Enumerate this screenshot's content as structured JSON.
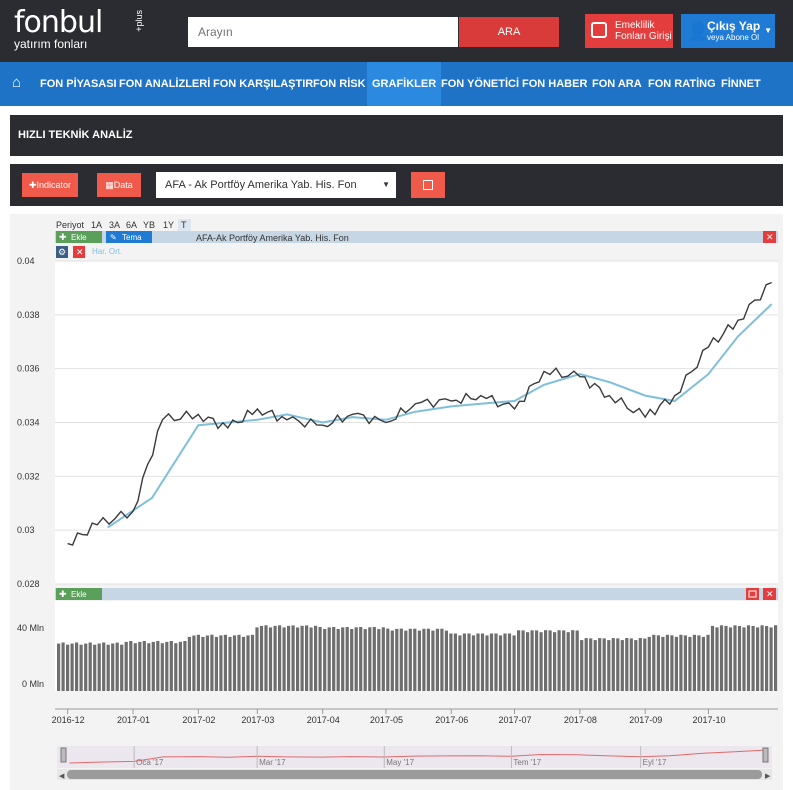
{
  "header": {
    "logo_main": "fonbul",
    "logo_plus": "+plus",
    "logo_sub": "yatırım fonları",
    "search_placeholder": "Arayın",
    "search_button": "ARA",
    "pension_button": "Emeklilik Fonları Girişi",
    "logout_title": "Çıkış Yap",
    "logout_sub": "veya Abone Ol"
  },
  "nav": {
    "items": [
      "FON PİYASASI",
      "FON ANALİZLERİ",
      "FON KARŞILAŞTIR",
      "FON RİSK",
      "GRAFİKLER",
      "FON YÖNETİCİ",
      "FON HABER",
      "FON ARA",
      "FON RATİNG",
      "FİNNET"
    ],
    "active": "GRAFİKLER"
  },
  "section": {
    "title": "HIZLI TEKNİK ANALİZ",
    "indicator_button": "Indicator",
    "data_button": "Data",
    "fund_selected": "AFA - Ak Portföy Amerika Yab. His. Fon"
  },
  "chart": {
    "period_label": "Periyot",
    "periods": [
      "1A",
      "3A",
      "6A",
      "YB",
      "1Y",
      "T"
    ],
    "active_period": "T",
    "add_label": "Ekle",
    "theme_label": "Tema",
    "series_title": "AFA-Ak Portföy Amerika Yab. His. Fon",
    "ma_label": "Har. Ort.",
    "volume_add_label": "Ekle",
    "price_ticks": [
      "0.04",
      "0.038",
      "0.036",
      "0.034",
      "0.032",
      "0.03",
      "0.028"
    ],
    "volume_ticks": [
      "40 Mln",
      "0 Mln"
    ],
    "x_ticks": [
      "2016-12",
      "2017-01",
      "2017-02",
      "2017-03",
      "2017-04",
      "2017-05",
      "2017-06",
      "2017-07",
      "2017-08",
      "2017-09",
      "2017-10"
    ],
    "navigator_labels": [
      "Oca '17",
      "Mar '17",
      "May '17",
      "Tem '17",
      "Eyl '17"
    ]
  },
  "chart_data": {
    "type": "line",
    "title": "AFA-Ak Portföy Amerika Yab. His. Fon",
    "ylim": [
      0.028,
      0.04
    ],
    "series": [
      {
        "name": "AFA-Ak Portföy Amerika Yab. His. Fon",
        "x": [
          "2016-12-01",
          "2016-12-15",
          "2017-01-01",
          "2017-01-15",
          "2017-02-01",
          "2017-02-15",
          "2017-03-01",
          "2017-03-15",
          "2017-04-01",
          "2017-04-15",
          "2017-05-01",
          "2017-05-15",
          "2017-06-01",
          "2017-06-15",
          "2017-07-01",
          "2017-07-15",
          "2017-08-01",
          "2017-08-15",
          "2017-09-01",
          "2017-09-15",
          "2017-10-01",
          "2017-10-15",
          "2017-10-31"
        ],
        "values": [
          0.0295,
          0.0302,
          0.0307,
          0.0341,
          0.0343,
          0.0338,
          0.0345,
          0.0341,
          0.0339,
          0.0343,
          0.034,
          0.0347,
          0.0348,
          0.035,
          0.0345,
          0.0359,
          0.0357,
          0.035,
          0.0342,
          0.035,
          0.0368,
          0.0378,
          0.0392
        ]
      },
      {
        "name": "Har. Ort.",
        "x": [
          "2016-12-20",
          "2017-01-10",
          "2017-02-01",
          "2017-02-15",
          "2017-03-01",
          "2017-03-15",
          "2017-04-01",
          "2017-04-15",
          "2017-05-01",
          "2017-05-15",
          "2017-06-01",
          "2017-06-15",
          "2017-07-01",
          "2017-07-15",
          "2017-08-01",
          "2017-08-15",
          "2017-09-01",
          "2017-09-15",
          "2017-10-01",
          "2017-10-15",
          "2017-10-31"
        ],
        "values": [
          0.0301,
          0.0312,
          0.0339,
          0.034,
          0.0341,
          0.0343,
          0.034,
          0.0342,
          0.0341,
          0.0344,
          0.0346,
          0.0347,
          0.0348,
          0.0354,
          0.0358,
          0.0355,
          0.035,
          0.0348,
          0.0358,
          0.0372,
          0.0384
        ]
      }
    ],
    "volume": {
      "unit": "Mln",
      "x": [
        "2016-12",
        "2017-01",
        "2017-02",
        "2017-03",
        "2017-04",
        "2017-05",
        "2017-06",
        "2017-07",
        "2017-08",
        "2017-09",
        "2017-10"
      ],
      "values": [
        30,
        31,
        35,
        41,
        40,
        39,
        36,
        38,
        33,
        35,
        41
      ]
    }
  },
  "colors": {
    "topbar": "#2b2c31",
    "navbar": "#1f73c7",
    "accent_red": "#e43d3d",
    "price_line": "#3a3a3a",
    "ma_line": "#7fbfdb"
  }
}
